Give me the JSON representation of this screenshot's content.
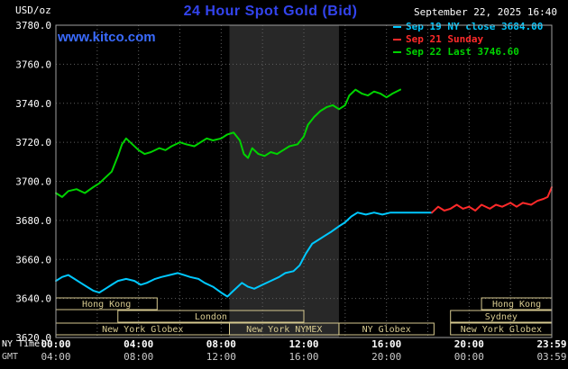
{
  "header": {
    "title": "24 Hour Spot Gold (Bid)",
    "datetime": "September 22, 2025 16:40",
    "watermark": "www.kitco.com",
    "y_unit": "USD/oz"
  },
  "legend": [
    {
      "label": "Sep 19 NY close 3684.00",
      "color": "#00c8ff"
    },
    {
      "label": "Sep 21 Sunday",
      "color": "#ff2a2a"
    },
    {
      "label": "Sep 22 Last 3746.60",
      "color": "#00d300"
    }
  ],
  "axes": {
    "ny_time_label": "NY Time",
    "gmt_label": "GMT",
    "y_ticks": [
      "3780.0",
      "3760.0",
      "3740.0",
      "3720.0",
      "3700.0",
      "3680.0",
      "3660.0",
      "3640.0",
      "3620.0"
    ],
    "x_ticks": [
      {
        "h": 0,
        "ny": "00:00",
        "gmt": "04:00"
      },
      {
        "h": 4,
        "ny": "04:00",
        "gmt": "08:00"
      },
      {
        "h": 8,
        "ny": "08:00",
        "gmt": "12:00"
      },
      {
        "h": 12,
        "ny": "12:00",
        "gmt": "16:00"
      },
      {
        "h": 16,
        "ny": "16:00",
        "gmt": "20:00"
      },
      {
        "h": 20,
        "ny": "20:00",
        "gmt": "00:00"
      },
      {
        "h": 24,
        "ny": "23:59",
        "gmt": "03:59"
      }
    ]
  },
  "colors": {
    "title": "#3344ee",
    "watermark": "#3a6bff",
    "grid": "#5f5f5f",
    "border": "#a0a0a0",
    "axis_text": "#ffffff",
    "gmt_text": "#cccccc",
    "session": "#d6c98f",
    "shading": "#282828",
    "background": "#000000"
  },
  "chart_data": {
    "type": "line",
    "title": "24 Hour Spot Gold (Bid)",
    "xlabel": "NY Time (hours 00:00-23:59)",
    "ylabel": "USD/oz",
    "xlim": [
      0,
      24
    ],
    "ylim": [
      3620,
      3780
    ],
    "y_step": 20,
    "x_grid_step": 2,
    "legend_position": "top-right",
    "nymex_shading": {
      "start_h": 8.4,
      "end_h": 13.7
    },
    "series": [
      {
        "id": "sep19",
        "name": "Sep 19 NY close 3684.00",
        "color": "#00c8ff",
        "points": [
          [
            0,
            3649
          ],
          [
            0.3,
            3651
          ],
          [
            0.6,
            3652
          ],
          [
            0.9,
            3650
          ],
          [
            1.2,
            3648
          ],
          [
            1.5,
            3646
          ],
          [
            1.8,
            3644
          ],
          [
            2.1,
            3643
          ],
          [
            2.4,
            3645
          ],
          [
            2.7,
            3647
          ],
          [
            3,
            3649
          ],
          [
            3.4,
            3650
          ],
          [
            3.8,
            3649
          ],
          [
            4.1,
            3647
          ],
          [
            4.4,
            3648
          ],
          [
            4.8,
            3650
          ],
          [
            5.1,
            3651
          ],
          [
            5.5,
            3652
          ],
          [
            5.9,
            3653
          ],
          [
            6.2,
            3652
          ],
          [
            6.5,
            3651
          ],
          [
            6.9,
            3650
          ],
          [
            7.2,
            3648
          ],
          [
            7.6,
            3646
          ],
          [
            8,
            3643
          ],
          [
            8.3,
            3641
          ],
          [
            8.6,
            3644
          ],
          [
            9,
            3648
          ],
          [
            9.3,
            3646
          ],
          [
            9.6,
            3645
          ],
          [
            10,
            3647
          ],
          [
            10.4,
            3649
          ],
          [
            10.8,
            3651
          ],
          [
            11.1,
            3653
          ],
          [
            11.5,
            3654
          ],
          [
            11.8,
            3657
          ],
          [
            12.1,
            3663
          ],
          [
            12.4,
            3668
          ],
          [
            12.7,
            3670
          ],
          [
            13,
            3672
          ],
          [
            13.3,
            3674
          ],
          [
            13.7,
            3677
          ],
          [
            14,
            3679
          ],
          [
            14.3,
            3682
          ],
          [
            14.6,
            3684
          ],
          [
            15,
            3683
          ],
          [
            15.4,
            3684
          ],
          [
            15.8,
            3683
          ],
          [
            16.2,
            3684
          ],
          [
            16.8,
            3684
          ],
          [
            17.4,
            3684
          ],
          [
            18.2,
            3684
          ]
        ]
      },
      {
        "id": "sep21",
        "name": "Sep 21 Sunday",
        "color": "#ff2a2a",
        "points": [
          [
            18.2,
            3684
          ],
          [
            18.5,
            3687
          ],
          [
            18.8,
            3685
          ],
          [
            19.1,
            3686
          ],
          [
            19.4,
            3688
          ],
          [
            19.7,
            3686
          ],
          [
            20,
            3687
          ],
          [
            20.3,
            3685
          ],
          [
            20.6,
            3688
          ],
          [
            21,
            3686
          ],
          [
            21.3,
            3688
          ],
          [
            21.6,
            3687
          ],
          [
            22,
            3689
          ],
          [
            22.3,
            3687
          ],
          [
            22.6,
            3689
          ],
          [
            23,
            3688
          ],
          [
            23.3,
            3690
          ],
          [
            23.6,
            3691
          ],
          [
            23.8,
            3692
          ],
          [
            24,
            3697
          ]
        ]
      },
      {
        "id": "sep22",
        "name": "Sep 22 Last 3746.60",
        "color": "#00d300",
        "points": [
          [
            0,
            3694
          ],
          [
            0.3,
            3692
          ],
          [
            0.6,
            3695
          ],
          [
            1,
            3696
          ],
          [
            1.4,
            3694
          ],
          [
            1.8,
            3697
          ],
          [
            2.1,
            3699
          ],
          [
            2.4,
            3702
          ],
          [
            2.7,
            3705
          ],
          [
            3,
            3713
          ],
          [
            3.2,
            3719
          ],
          [
            3.4,
            3722
          ],
          [
            3.7,
            3719
          ],
          [
            4,
            3716
          ],
          [
            4.3,
            3714
          ],
          [
            4.6,
            3715
          ],
          [
            5,
            3717
          ],
          [
            5.3,
            3716
          ],
          [
            5.6,
            3718
          ],
          [
            6,
            3720
          ],
          [
            6.3,
            3719
          ],
          [
            6.7,
            3718
          ],
          [
            7,
            3720
          ],
          [
            7.3,
            3722
          ],
          [
            7.6,
            3721
          ],
          [
            8,
            3722
          ],
          [
            8.3,
            3724
          ],
          [
            8.6,
            3725
          ],
          [
            8.9,
            3721
          ],
          [
            9.1,
            3714
          ],
          [
            9.3,
            3712
          ],
          [
            9.5,
            3717
          ],
          [
            9.8,
            3714
          ],
          [
            10.1,
            3713
          ],
          [
            10.4,
            3715
          ],
          [
            10.7,
            3714
          ],
          [
            11,
            3716
          ],
          [
            11.3,
            3718
          ],
          [
            11.7,
            3719
          ],
          [
            12,
            3723
          ],
          [
            12.2,
            3729
          ],
          [
            12.5,
            3733
          ],
          [
            12.8,
            3736
          ],
          [
            13.1,
            3738
          ],
          [
            13.4,
            3739
          ],
          [
            13.7,
            3737
          ],
          [
            14,
            3739
          ],
          [
            14.2,
            3744
          ],
          [
            14.5,
            3747
          ],
          [
            14.8,
            3745
          ],
          [
            15.1,
            3744
          ],
          [
            15.4,
            3746
          ],
          [
            15.7,
            3745
          ],
          [
            16,
            3743
          ],
          [
            16.3,
            3745
          ],
          [
            16.67,
            3747
          ]
        ]
      }
    ],
    "sessions": [
      {
        "label": "Hong Kong",
        "row": 0,
        "start_h": 0,
        "end_h": 4.9
      },
      {
        "label": "Hong Kong",
        "row": 0,
        "start_h": 20.6,
        "end_h": 24
      },
      {
        "label": "London",
        "row": 1,
        "start_h": 3.0,
        "end_h": 12.0
      },
      {
        "label": "Sydney",
        "row": 1,
        "start_h": 19.1,
        "end_h": 24
      },
      {
        "label": "New York Globex",
        "row": 2,
        "start_h": 0,
        "end_h": 8.4
      },
      {
        "label": "New York NYMEX",
        "row": 2,
        "start_h": 8.4,
        "end_h": 13.7
      },
      {
        "label": "NY Globex",
        "row": 2,
        "start_h": 13.7,
        "end_h": 18.3
      },
      {
        "label": "New York Globex",
        "row": 2,
        "start_h": 19.1,
        "end_h": 24
      }
    ]
  }
}
